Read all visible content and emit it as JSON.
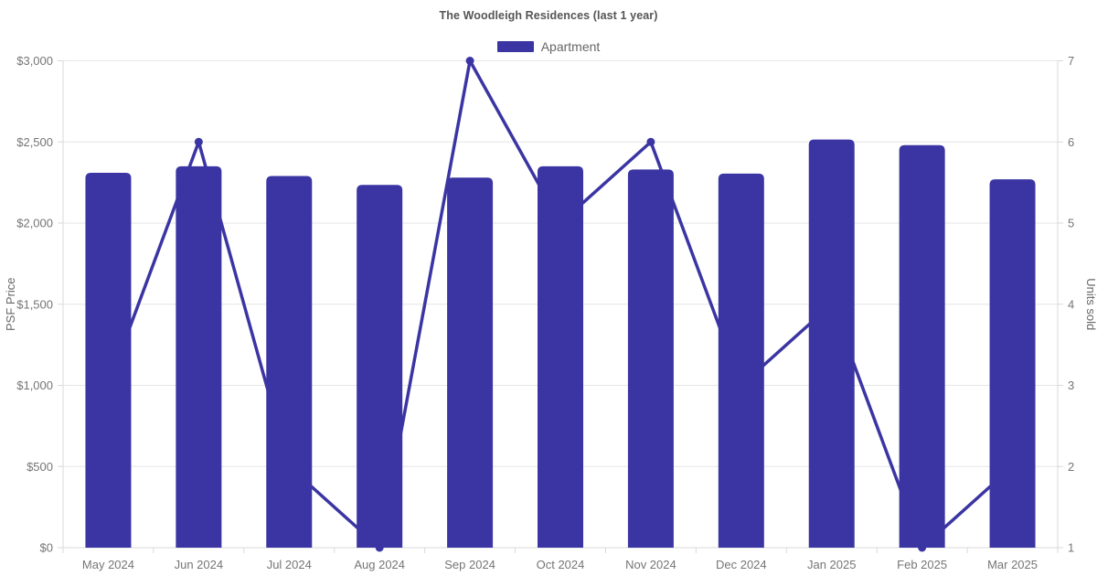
{
  "title": "The Woodleigh Residences (last 1 year)",
  "legend": [
    {
      "label": "Apartment",
      "color": "#3B35A3"
    }
  ],
  "chart_data": {
    "type": "bar",
    "title": "The Woodleigh Residences (last 1 year)",
    "categories": [
      "May 2024",
      "Jun 2024",
      "Jul 2024",
      "Aug 2024",
      "Sep 2024",
      "Oct 2024",
      "Nov 2024",
      "Dec 2024",
      "Jan 2025",
      "Feb 2025",
      "Mar 2025"
    ],
    "series": [
      {
        "name": "Apartment",
        "type": "bar",
        "axis": "left",
        "values": [
          2310,
          2350,
          2290,
          2235,
          2280,
          2350,
          2330,
          2305,
          2515,
          2480,
          2270
        ],
        "color": "#3B35A3"
      },
      {
        "name": "Units sold",
        "type": "line",
        "axis": "right",
        "values": [
          3,
          6,
          2,
          1,
          7,
          5,
          6,
          3,
          4,
          1,
          2
        ],
        "color": "#3B35A3"
      }
    ],
    "left_axis": {
      "label": "PSF Price",
      "min": 0,
      "max": 3000,
      "tick_step": 500,
      "tick_labels": [
        "$0",
        "$500",
        "$1,000",
        "$1,500",
        "$2,000",
        "$2,500",
        "$3,000"
      ]
    },
    "right_axis": {
      "label": "Units sold",
      "min": 1,
      "max": 7,
      "tick_step": 1,
      "tick_labels": [
        "1",
        "2",
        "3",
        "4",
        "5",
        "6",
        "7"
      ]
    },
    "grid": "horizontal",
    "legend_position": "top"
  },
  "colors": {
    "bar": "#3B35A3",
    "line": "#3B35A3",
    "grid": "#E6E6E6",
    "axis_line": "#D9D9D9",
    "tick_text": "#757575",
    "axis_label_text": "#666666",
    "title_text": "#555555",
    "background": "#FFFFFF"
  }
}
